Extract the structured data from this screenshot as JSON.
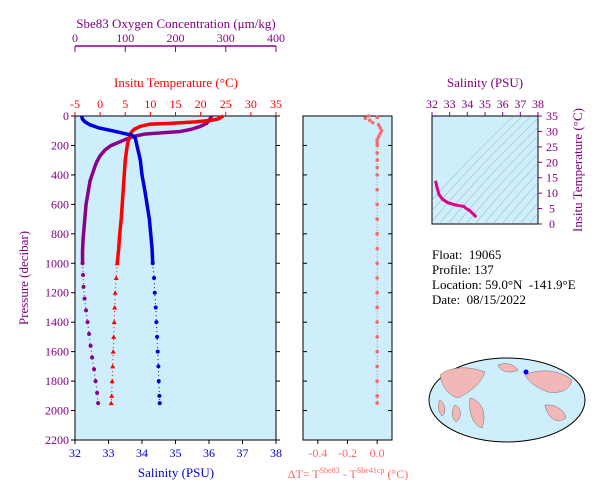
{
  "info": {
    "float_label": "Float:",
    "float_value": "19065",
    "profile_label": "Profile:",
    "profile_value": "137",
    "location_label": "Location:",
    "location_value": "59.0°N  -141.9°E",
    "date_label": "Date:",
    "date_value": "08/15/2022"
  },
  "colors": {
    "oxygen": "#8b008b",
    "temperature": "#ff0000",
    "salinity": "#0000dd",
    "delta": "#ff6666",
    "ts": "#e0008a",
    "panel_bg": "#cdeefa",
    "axis_left": "#800080",
    "salinity_axis": "#0000cc"
  },
  "chart_data": [
    {
      "type": "line",
      "name": "main-profile",
      "title_top": "Sbe83 Oxygen Concentration (μm/kg)",
      "title_mid": "Insitu Temperature (°C)",
      "xlabel": "Salinity (PSU)",
      "ylabel": "Pressure (decibar)",
      "ylim": [
        0,
        2200
      ],
      "y_reversed": true,
      "y_ticks": [
        "0",
        "200",
        "400",
        "600",
        "800",
        "1000",
        "1200",
        "1400",
        "1600",
        "1800",
        "2000",
        "2200"
      ],
      "oxygen_axis": {
        "range": [
          0,
          400
        ],
        "ticks": [
          "0",
          "100",
          "200",
          "300",
          "400"
        ]
      },
      "temperature_axis": {
        "range": [
          -5,
          35
        ],
        "ticks": [
          "-5",
          "0",
          "5",
          "10",
          "15",
          "20",
          "25",
          "30",
          "35"
        ]
      },
      "salinity_axis": {
        "range": [
          32,
          38
        ],
        "ticks": [
          "32",
          "33",
          "34",
          "35",
          "36",
          "37",
          "38"
        ]
      },
      "series": [
        {
          "key": "oxygen",
          "points": [
            [
              272,
              0
            ],
            [
              270,
              10
            ],
            [
              268,
              25
            ],
            [
              262,
              50
            ],
            [
              250,
              70
            ],
            [
              232,
              90
            ],
            [
              210,
              105
            ],
            [
              170,
              115
            ],
            [
              140,
              122
            ],
            [
              115,
              140
            ],
            [
              100,
              160
            ],
            [
              86,
              180
            ],
            [
              72,
              200
            ],
            [
              60,
              230
            ],
            [
              50,
              270
            ],
            [
              42,
              320
            ],
            [
              36,
              380
            ],
            [
              30,
              440
            ],
            [
              26,
              520
            ],
            [
              22,
              600
            ],
            [
              20,
              680
            ],
            [
              18,
              760
            ],
            [
              16,
              840
            ],
            [
              15,
              920
            ],
            [
              15,
              1000
            ],
            [
              16,
              1080
            ],
            [
              17,
              1160
            ],
            [
              19,
              1240
            ],
            [
              22,
              1320
            ],
            [
              25,
              1400
            ],
            [
              28,
              1480
            ],
            [
              31,
              1560
            ],
            [
              34,
              1640
            ],
            [
              38,
              1720
            ],
            [
              41,
              1800
            ],
            [
              44,
              1880
            ],
            [
              46,
              1950
            ]
          ]
        },
        {
          "key": "temperature",
          "points": [
            [
              24.5,
              0
            ],
            [
              24,
              10
            ],
            [
              23.5,
              20
            ],
            [
              22,
              30
            ],
            [
              19,
              40
            ],
            [
              14,
              50
            ],
            [
              10,
              55
            ],
            [
              8,
              70
            ],
            [
              6.8,
              90
            ],
            [
              6.2,
              110
            ],
            [
              6.0,
              130
            ],
            [
              5.8,
              150
            ],
            [
              5.6,
              170
            ],
            [
              5.4,
              200
            ],
            [
              5.2,
              250
            ],
            [
              5.0,
              300
            ],
            [
              4.8,
              400
            ],
            [
              4.6,
              500
            ],
            [
              4.4,
              600
            ],
            [
              4.2,
              700
            ],
            [
              3.9,
              800
            ],
            [
              3.7,
              900
            ],
            [
              3.4,
              1000
            ],
            [
              3.2,
              1100
            ],
            [
              3.0,
              1200
            ],
            [
              2.9,
              1300
            ],
            [
              2.8,
              1400
            ],
            [
              2.7,
              1500
            ],
            [
              2.6,
              1600
            ],
            [
              2.5,
              1700
            ],
            [
              2.4,
              1800
            ],
            [
              2.3,
              1900
            ],
            [
              2.2,
              1950
            ]
          ]
        },
        {
          "key": "salinity",
          "points": [
            [
              32.2,
              0
            ],
            [
              32.22,
              20
            ],
            [
              32.3,
              40
            ],
            [
              32.45,
              60
            ],
            [
              32.7,
              80
            ],
            [
              33.1,
              100
            ],
            [
              33.4,
              115
            ],
            [
              33.7,
              130
            ],
            [
              33.8,
              150
            ],
            [
              33.85,
              200
            ],
            [
              33.95,
              300
            ],
            [
              34.0,
              400
            ],
            [
              34.08,
              500
            ],
            [
              34.15,
              600
            ],
            [
              34.22,
              700
            ],
            [
              34.26,
              800
            ],
            [
              34.3,
              900
            ],
            [
              34.32,
              1000
            ],
            [
              34.36,
              1100
            ],
            [
              34.38,
              1200
            ],
            [
              34.41,
              1300
            ],
            [
              34.43,
              1400
            ],
            [
              34.45,
              1500
            ],
            [
              34.47,
              1600
            ],
            [
              34.49,
              1700
            ],
            [
              34.5,
              1800
            ],
            [
              34.52,
              1900
            ],
            [
              34.53,
              1950
            ]
          ]
        }
      ]
    },
    {
      "type": "scatter",
      "name": "delta-temperature",
      "xlabel": "ΔT= T",
      "xlabel_sup1": "Sbe83",
      "xlabel_mid": " - T",
      "xlabel_sup2": "Sbe41cp",
      "xlabel_unit": " (°C)",
      "xlim": [
        -0.5,
        0.1
      ],
      "ylim": [
        0,
        2200
      ],
      "x_ticks": [
        "-0.4",
        "-0.2",
        "0.0"
      ],
      "points": [
        [
          -0.06,
          0
        ],
        [
          -0.08,
          15
        ],
        [
          -0.05,
          30
        ],
        [
          -0.03,
          45
        ],
        [
          0.0,
          10
        ],
        [
          0.01,
          60
        ],
        [
          0.02,
          80
        ],
        [
          0.03,
          100
        ],
        [
          0.02,
          120
        ],
        [
          0.01,
          140
        ],
        [
          0.0,
          160
        ],
        [
          0.0,
          180
        ],
        [
          0.0,
          200
        ],
        [
          0.0,
          250
        ],
        [
          0.0,
          300
        ],
        [
          0.0,
          350
        ],
        [
          0.0,
          400
        ],
        [
          0.0,
          500
        ],
        [
          0.0,
          600
        ],
        [
          0.0,
          700
        ],
        [
          0.0,
          800
        ],
        [
          0.0,
          900
        ],
        [
          0.0,
          1000
        ],
        [
          0.0,
          1100
        ],
        [
          0.0,
          1200
        ],
        [
          0.0,
          1300
        ],
        [
          0.0,
          1400
        ],
        [
          0.0,
          1500
        ],
        [
          0.0,
          1600
        ],
        [
          0.0,
          1700
        ],
        [
          0.0,
          1800
        ],
        [
          0.0,
          1900
        ],
        [
          0.0,
          1950
        ]
      ]
    },
    {
      "type": "line",
      "name": "t-s-diagram",
      "title": "Salinity (PSU)",
      "ylabel": "Insitu Temperature (°C)",
      "xlim": [
        32,
        38
      ],
      "ylim": [
        0,
        35
      ],
      "x_ticks": [
        "32",
        "33",
        "34",
        "35",
        "36",
        "37",
        "38"
      ],
      "y_ticks": [
        "0",
        "5",
        "10",
        "15",
        "20",
        "25",
        "30",
        "35"
      ],
      "points": [
        [
          32.2,
          14.0
        ],
        [
          32.3,
          11.5
        ],
        [
          32.4,
          9.5
        ],
        [
          32.6,
          8.0
        ],
        [
          32.9,
          6.9
        ],
        [
          33.3,
          6.2
        ],
        [
          33.6,
          5.9
        ],
        [
          33.8,
          5.7
        ],
        [
          33.9,
          5.2
        ],
        [
          34.0,
          4.8
        ],
        [
          34.1,
          4.5
        ],
        [
          34.15,
          4.3
        ],
        [
          34.2,
          4.0
        ],
        [
          34.3,
          3.4
        ],
        [
          34.4,
          2.9
        ],
        [
          34.5,
          2.2
        ]
      ]
    }
  ]
}
